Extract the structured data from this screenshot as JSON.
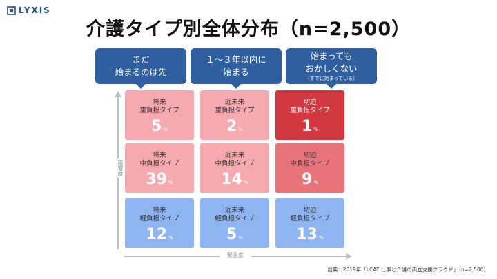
{
  "logo": {
    "text": "LYXIS"
  },
  "title": "介護タイプ別全体分布（n=2,500）",
  "headers": [
    {
      "line1": "まだ",
      "line2": "始まるのは先",
      "sub": ""
    },
    {
      "line1": "１～３年以内に",
      "line2": "始まる",
      "sub": ""
    },
    {
      "line1": "始まっても",
      "line2": "おかしくない",
      "sub": "（すでに始まっている）"
    }
  ],
  "cells": [
    {
      "line1": "将来",
      "line2": "重負担タイプ",
      "value": "5",
      "unit": "%",
      "color": "#f6a9ae",
      "dark": false
    },
    {
      "line1": "近未来",
      "line2": "重負担タイプ",
      "value": "2",
      "unit": "%",
      "color": "#f6a9ae",
      "dark": false
    },
    {
      "line1": "切迫",
      "line2": "重負担タイプ",
      "value": "1",
      "unit": "%",
      "color": "#d2383f",
      "dark": true
    },
    {
      "line1": "将来",
      "line2": "中負担タイプ",
      "value": "39",
      "unit": "%",
      "color": "#f6a9ae",
      "dark": false
    },
    {
      "line1": "近未来",
      "line2": "中負担タイプ",
      "value": "14",
      "unit": "%",
      "color": "#f6a9ae",
      "dark": false
    },
    {
      "line1": "切迫",
      "line2": "中負担タイプ",
      "value": "9",
      "unit": "%",
      "color": "#e8737a",
      "dark": false
    },
    {
      "line1": "将来",
      "line2": "軽負担タイプ",
      "value": "12",
      "unit": "%",
      "color": "#8fb4f2",
      "dark": false
    },
    {
      "line1": "近未来",
      "line2": "軽負担タイプ",
      "value": "5",
      "unit": "%",
      "color": "#8fb4f2",
      "dark": false
    },
    {
      "line1": "切迫",
      "line2": "軽負担タイプ",
      "value": "13",
      "unit": "%",
      "color": "#8fb4f2",
      "dark": false
    }
  ],
  "axes": {
    "y_label": "影響度",
    "x_label": "緊急度"
  },
  "source": "出典：2019年「LCAT 仕事と介護の両立支援クラウド」（n=2,500）"
}
